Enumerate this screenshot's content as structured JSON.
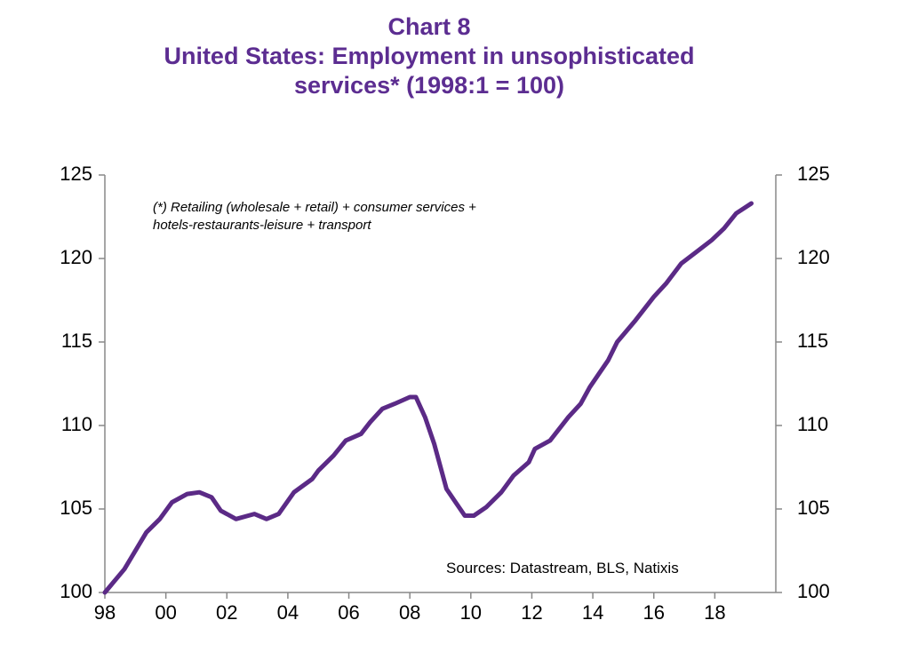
{
  "chart_data": {
    "type": "line",
    "title": "Chart 8",
    "subtitle": "United States: Employment in unsophisticated services* (1998:1 = 100)",
    "annotation": "(*) Retailing (wholesale + retail) + consumer services + hotels-restaurants-leisure + transport",
    "source": "Sources:  Datastream,  BLS, Natixis",
    "x": [
      1998.0,
      1998.64,
      1999.36,
      1999.8,
      2000.2,
      2000.7,
      2001.1,
      2001.5,
      2001.8,
      2002.3,
      2002.9,
      2003.3,
      2003.7,
      2004.2,
      2004.8,
      2005.0,
      2005.5,
      2005.9,
      2006.4,
      2006.7,
      2007.1,
      2007.5,
      2008.0,
      2008.2,
      2008.5,
      2008.8,
      2009.2,
      2009.5,
      2009.8,
      2010.1,
      2010.5,
      2011.0,
      2011.4,
      2011.9,
      2012.1,
      2012.6,
      2013.2,
      2013.6,
      2013.9,
      2014.2,
      2014.5,
      2014.8,
      2015.4,
      2016.0,
      2016.4,
      2016.9,
      2017.4,
      2017.9,
      2018.3,
      2018.7,
      2019.2
    ],
    "series": [
      {
        "color": "#5b2a86",
        "values": [
          100.0,
          101.4,
          103.6,
          104.4,
          105.4,
          105.9,
          106.0,
          105.7,
          104.9,
          104.4,
          104.7,
          104.4,
          104.7,
          106.0,
          106.8,
          107.3,
          108.2,
          109.1,
          109.5,
          110.2,
          111.0,
          111.3,
          111.7,
          111.7,
          110.5,
          108.9,
          106.2,
          105.4,
          104.6,
          104.6,
          105.1,
          106.0,
          107.0,
          107.8,
          108.6,
          109.1,
          110.5,
          111.3,
          112.3,
          113.1,
          113.9,
          115.0,
          116.3,
          117.7,
          118.5,
          119.7,
          120.4,
          121.1,
          121.8,
          122.7,
          123.3
        ]
      }
    ],
    "xlim": [
      1998,
      2020
    ],
    "xticks": [
      {
        "value": 1998,
        "label": "98"
      },
      {
        "value": 2000,
        "label": "00"
      },
      {
        "value": 2002,
        "label": "02"
      },
      {
        "value": 2004,
        "label": "04"
      },
      {
        "value": 2006,
        "label": "06"
      },
      {
        "value": 2008,
        "label": "08"
      },
      {
        "value": 2010,
        "label": "10"
      },
      {
        "value": 2012,
        "label": "12"
      },
      {
        "value": 2014,
        "label": "14"
      },
      {
        "value": 2016,
        "label": "16"
      },
      {
        "value": 2018,
        "label": "18"
      }
    ],
    "ylim": [
      100,
      125
    ],
    "yticks": [
      100,
      105,
      110,
      115,
      120,
      125
    ],
    "y2lim": [
      100,
      125
    ],
    "y2ticks": [
      100,
      105,
      110,
      115,
      120,
      125
    ],
    "grid": false
  }
}
